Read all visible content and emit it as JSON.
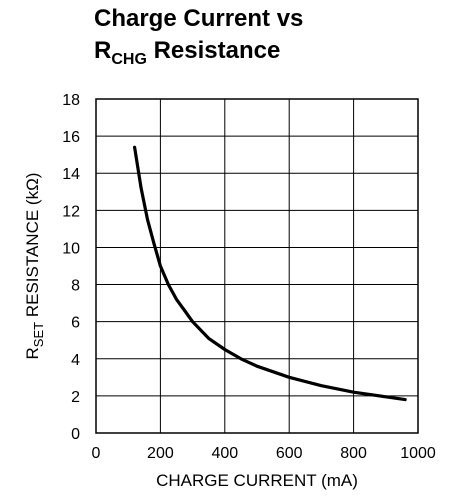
{
  "title": {
    "line1": "Charge Current vs",
    "line2_prefix": "R",
    "line2_sub": "CHG",
    "line2_suffix": " Resistance"
  },
  "chart_data": {
    "type": "line",
    "xlabel": "CHARGE CURRENT (mA)",
    "ylabel": {
      "prefix": "R",
      "sub": "SET",
      "suffix": " RESISTANCE (kΩ)"
    },
    "xlim": [
      0,
      1000
    ],
    "ylim": [
      0,
      18
    ],
    "xticks": [
      0,
      200,
      400,
      600,
      800,
      1000
    ],
    "yticks": [
      0,
      2,
      4,
      6,
      8,
      10,
      12,
      14,
      16,
      18
    ],
    "grid": true,
    "series": [
      {
        "x": [
          120,
          140,
          160,
          180,
          200,
          225,
          250,
          275,
          300,
          350,
          400,
          450,
          500,
          600,
          700,
          800,
          900,
          960
        ],
        "y": [
          15.4,
          13.2,
          11.5,
          10.2,
          9.0,
          8.0,
          7.2,
          6.6,
          6.0,
          5.1,
          4.5,
          4.0,
          3.6,
          3.0,
          2.55,
          2.2,
          1.95,
          1.8
        ]
      }
    ]
  }
}
